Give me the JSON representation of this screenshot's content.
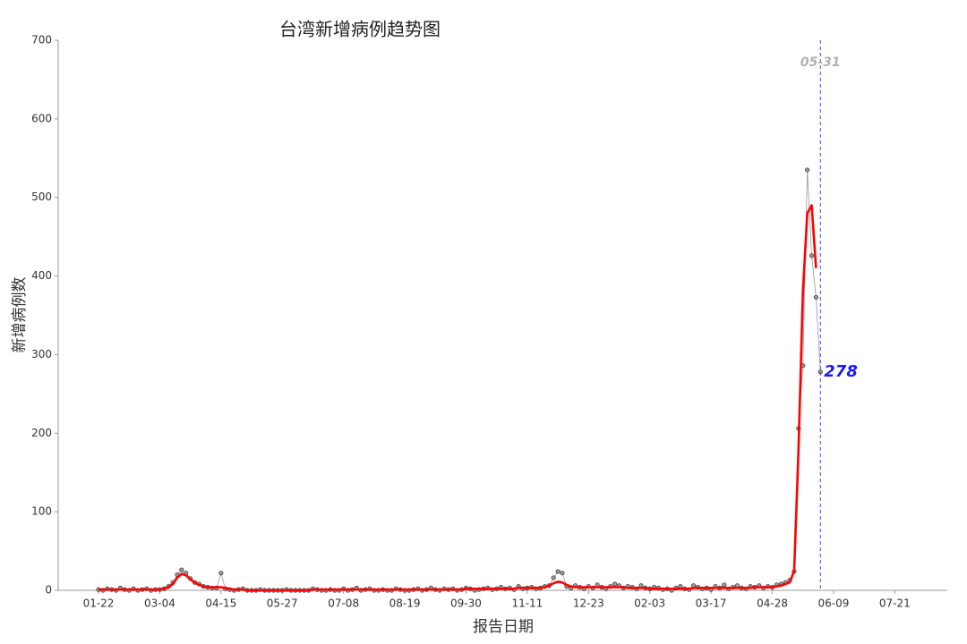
{
  "chart_data": {
    "type": "line",
    "title": "台湾新增病例趋势图",
    "x_label": "报告日期",
    "y_label": "新增病例数",
    "ylim": [
      0,
      700
    ],
    "yticks": [
      0,
      100,
      200,
      300,
      400,
      500,
      600,
      700
    ],
    "categories": [
      "01-22",
      null,
      null,
      null,
      null,
      null,
      null,
      null,
      null,
      null,
      null,
      null,
      null,
      null,
      "03-04",
      null,
      null,
      null,
      null,
      null,
      null,
      null,
      null,
      null,
      null,
      null,
      null,
      null,
      "04-15",
      null,
      null,
      null,
      null,
      null,
      null,
      null,
      null,
      null,
      null,
      null,
      null,
      null,
      "05-27",
      null,
      null,
      null,
      null,
      null,
      null,
      null,
      null,
      null,
      null,
      null,
      null,
      null,
      "07-08",
      null,
      null,
      null,
      null,
      null,
      null,
      null,
      null,
      null,
      null,
      null,
      null,
      null,
      "08-19",
      null,
      null,
      null,
      null,
      null,
      null,
      null,
      null,
      null,
      null,
      null,
      null,
      null,
      "09-30",
      null,
      null,
      null,
      null,
      null,
      null,
      null,
      null,
      null,
      null,
      null,
      null,
      null,
      "11-11",
      null,
      null,
      null,
      null,
      null,
      null,
      null,
      null,
      null,
      null,
      null,
      null,
      null,
      "12-23",
      null,
      null,
      null,
      null,
      null,
      null,
      null,
      null,
      null,
      null,
      null,
      null,
      null,
      "02-03",
      null,
      null,
      null,
      null,
      null,
      null,
      null,
      null,
      null,
      null,
      null,
      null,
      null,
      "03-17",
      null,
      null,
      null,
      null,
      null,
      null,
      null,
      null,
      null,
      null,
      null,
      null,
      null,
      "04-28",
      null,
      null,
      null,
      null,
      null,
      null,
      null,
      null,
      null,
      null,
      null,
      null,
      null,
      "06-09",
      null,
      null,
      null,
      null,
      null,
      null,
      null,
      null,
      null,
      null,
      null,
      null,
      null,
      "07-21",
      null,
      null,
      null,
      null,
      null,
      null,
      null,
      null,
      null,
      null,
      null,
      null
    ],
    "series": [
      {
        "color": "#999999",
        "style": "dots",
        "values": [
          1,
          0,
          2,
          1,
          0,
          3,
          1,
          0,
          2,
          0,
          1,
          2,
          0,
          1,
          1,
          2,
          5,
          10,
          20,
          26,
          22,
          15,
          10,
          8,
          5,
          4,
          3,
          3,
          22,
          2,
          1,
          0,
          1,
          2,
          0,
          0,
          0,
          1,
          0,
          0,
          0,
          0,
          0,
          1,
          0,
          0,
          0,
          0,
          0,
          2,
          1,
          0,
          0,
          1,
          0,
          0,
          2,
          0,
          1,
          3,
          0,
          1,
          2,
          0,
          0,
          1,
          0,
          0,
          2,
          1,
          0,
          0,
          1,
          2,
          0,
          1,
          3,
          1,
          0,
          2,
          1,
          2,
          0,
          1,
          3,
          2,
          0,
          1,
          2,
          3,
          1,
          2,
          4,
          2,
          3,
          1,
          5,
          2,
          3,
          4,
          2,
          3,
          5,
          6,
          16,
          24,
          22,
          5,
          3,
          6,
          4,
          2,
          5,
          3,
          7,
          4,
          2,
          5,
          8,
          6,
          3,
          5,
          4,
          2,
          6,
          3,
          2,
          4,
          3,
          1,
          2,
          0,
          3,
          5,
          2,
          1,
          6,
          4,
          2,
          3,
          1,
          5,
          3,
          7,
          2,
          4,
          6,
          3,
          2,
          5,
          4,
          6,
          3,
          5,
          4,
          7,
          8,
          10,
          13,
          24,
          206,
          286,
          535,
          426,
          373,
          278,
          null,
          null,
          null,
          null,
          null,
          null,
          null,
          null,
          null,
          null,
          null,
          null,
          null,
          null,
          null,
          null,
          null,
          null,
          null,
          null,
          null,
          null,
          null,
          null,
          null,
          null,
          null,
          null,
          null
        ]
      },
      {
        "color": "#ff0000",
        "style": "line",
        "values": [
          1,
          1,
          1,
          1,
          1,
          1,
          1,
          1,
          1,
          1,
          1,
          1,
          1,
          1,
          1,
          2,
          4,
          8,
          16,
          21,
          19,
          14,
          10,
          7,
          5,
          4,
          4,
          4,
          4,
          3,
          2,
          1,
          1,
          1,
          0,
          0,
          0,
          0,
          0,
          0,
          0,
          0,
          0,
          0,
          0,
          0,
          0,
          0,
          0,
          1,
          1,
          1,
          1,
          1,
          1,
          1,
          1,
          1,
          1,
          1,
          1,
          1,
          1,
          1,
          1,
          1,
          1,
          1,
          1,
          1,
          1,
          1,
          1,
          1,
          1,
          1,
          1,
          1,
          1,
          1,
          1,
          1,
          1,
          1,
          2,
          2,
          2,
          2,
          2,
          2,
          2,
          2,
          2,
          2,
          2,
          2,
          3,
          3,
          3,
          3,
          3,
          3,
          4,
          6,
          9,
          11,
          10,
          7,
          5,
          4,
          4,
          4,
          4,
          4,
          4,
          4,
          4,
          4,
          4,
          4,
          4,
          3,
          3,
          3,
          3,
          3,
          2,
          2,
          2,
          2,
          2,
          2,
          2,
          2,
          2,
          2,
          3,
          3,
          3,
          3,
          3,
          3,
          3,
          3,
          3,
          3,
          3,
          3,
          3,
          3,
          4,
          4,
          4,
          4,
          4,
          5,
          6,
          8,
          10,
          25,
          180,
          380,
          480,
          490,
          410,
          null,
          null,
          null,
          null,
          null,
          null,
          null,
          null,
          null,
          null,
          null,
          null,
          null,
          null,
          null,
          null,
          null,
          null,
          null,
          null,
          null,
          null,
          null,
          null,
          null,
          null,
          null,
          null,
          null,
          null
        ]
      }
    ],
    "vline": {
      "label": "05-31",
      "index": 165,
      "color": "#4444ff"
    },
    "label_color": "#1a1aff"
  }
}
